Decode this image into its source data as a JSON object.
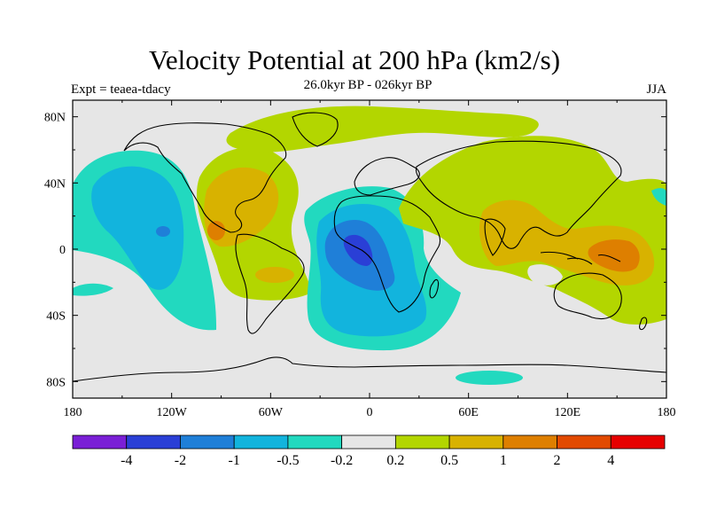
{
  "title": "Velocity Potential at 200 hPa (km2/s)",
  "subtitle_left": "Expt = teaea-tdacy",
  "subtitle_center": "26.0kyr BP - 026kyr BP",
  "subtitle_right": "JJA",
  "map": {
    "lon_range": [
      -180,
      180
    ],
    "lat_range": [
      -90,
      90
    ],
    "lat_ticks": [
      {
        "value": 80,
        "label": "80N"
      },
      {
        "value": 40,
        "label": "40N"
      },
      {
        "value": 0,
        "label": "0"
      },
      {
        "value": -40,
        "label": "40S"
      },
      {
        "value": -80,
        "label": "80S"
      }
    ],
    "lon_ticks": [
      {
        "value": -180,
        "label": "180"
      },
      {
        "value": -120,
        "label": "120W"
      },
      {
        "value": -60,
        "label": "60W"
      },
      {
        "value": 0,
        "label": "0"
      },
      {
        "value": 60,
        "label": "60E"
      },
      {
        "value": 120,
        "label": "120E"
      },
      {
        "value": 180,
        "label": "180"
      }
    ],
    "background_color": "#e6e6e6"
  },
  "colorbar": {
    "colors": [
      "#7a1fd6",
      "#2a3fd6",
      "#1f7fd8",
      "#12b4dd",
      "#22d9bf",
      "#e6e6e6",
      "#b3d600",
      "#d8b200",
      "#de7f00",
      "#e24a00",
      "#e60000"
    ],
    "labels": [
      "-4",
      "-2",
      "-1",
      "-0.5",
      "-0.2",
      "0.2",
      "0.5",
      "1",
      "2",
      "4"
    ]
  }
}
